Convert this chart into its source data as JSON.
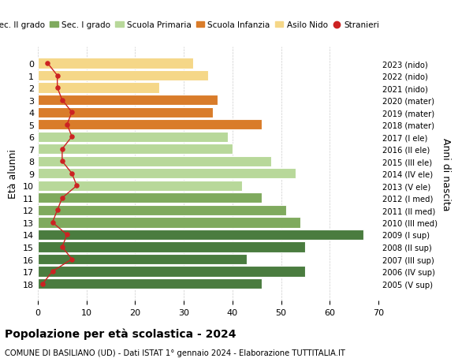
{
  "ages": [
    18,
    17,
    16,
    15,
    14,
    13,
    12,
    11,
    10,
    9,
    8,
    7,
    6,
    5,
    4,
    3,
    2,
    1,
    0
  ],
  "right_labels": [
    "2005 (V sup)",
    "2006 (IV sup)",
    "2007 (III sup)",
    "2008 (II sup)",
    "2009 (I sup)",
    "2010 (III med)",
    "2011 (II med)",
    "2012 (I med)",
    "2013 (V ele)",
    "2014 (IV ele)",
    "2015 (III ele)",
    "2016 (II ele)",
    "2017 (I ele)",
    "2018 (mater)",
    "2019 (mater)",
    "2020 (mater)",
    "2021 (nido)",
    "2022 (nido)",
    "2023 (nido)"
  ],
  "bar_values": [
    46,
    55,
    43,
    55,
    67,
    54,
    51,
    46,
    42,
    53,
    48,
    40,
    39,
    46,
    36,
    37,
    25,
    35,
    32
  ],
  "bar_colors": [
    "#4a7c3f",
    "#4a7c3f",
    "#4a7c3f",
    "#4a7c3f",
    "#4a7c3f",
    "#7faa5e",
    "#7faa5e",
    "#7faa5e",
    "#b8d89a",
    "#b8d89a",
    "#b8d89a",
    "#b8d89a",
    "#b8d89a",
    "#d97c2a",
    "#d97c2a",
    "#d97c2a",
    "#f5d788",
    "#f5d788",
    "#f5d788"
  ],
  "stranieri_values": [
    1,
    3,
    7,
    5,
    6,
    3,
    4,
    5,
    8,
    7,
    5,
    5,
    7,
    6,
    7,
    5,
    4,
    4,
    2
  ],
  "legend_labels": [
    "Sec. II grado",
    "Sec. I grado",
    "Scuola Primaria",
    "Scuola Infanzia",
    "Asilo Nido",
    "Stranieri"
  ],
  "legend_colors": [
    "#4a7c3f",
    "#7faa5e",
    "#b8d89a",
    "#d97c2a",
    "#f5d788",
    "#cc2222"
  ],
  "ylabel_left": "Età alunni",
  "ylabel_right": "Anni di nascita",
  "title": "Popolazione per età scolastica - 2024",
  "subtitle": "COMUNE DI BASILIANO (UD) - Dati ISTAT 1° gennaio 2024 - Elaborazione TUTTITALIA.IT",
  "xlim": [
    0,
    70
  ],
  "xticks": [
    0,
    10,
    20,
    30,
    40,
    50,
    60,
    70
  ],
  "background_color": "#ffffff",
  "bar_edge_color": "#ffffff",
  "grid_color": "#cccccc"
}
